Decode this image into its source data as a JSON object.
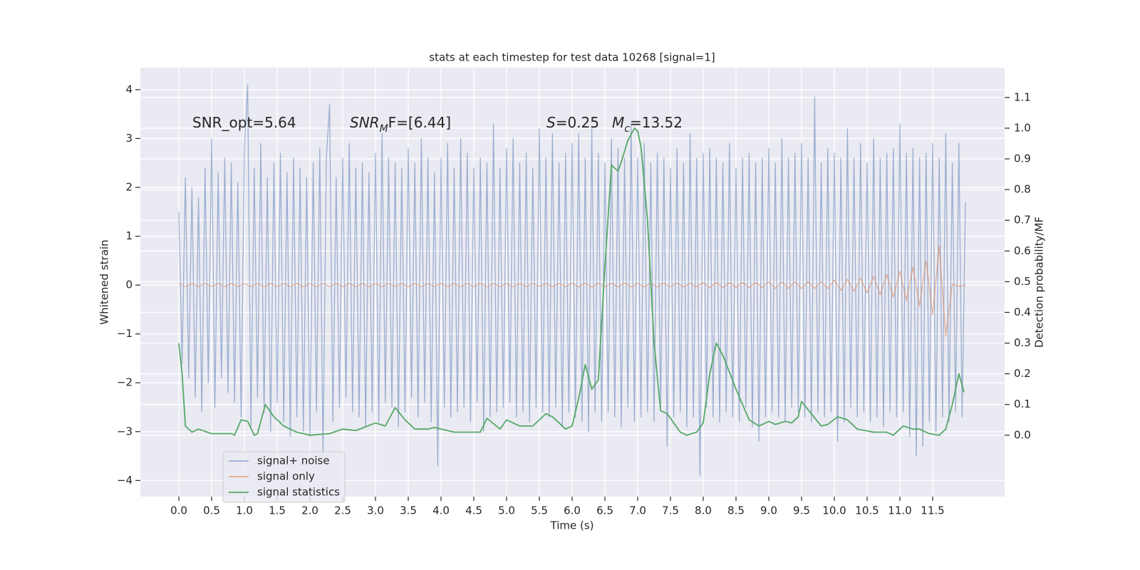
{
  "chart_data": {
    "type": "line",
    "title": "stats at each timestep for test data 10268 [signal=1]",
    "xlabel": "Time (s)",
    "ylabel": "Whitened strain",
    "y2label": "Detection probability/MF",
    "annotations": [
      {
        "parts": [
          {
            "text": "SNR_opt=5.64"
          }
        ]
      },
      {
        "parts": [
          {
            "text": "SNR",
            "style": "italic"
          },
          {
            "text": "M",
            "style": "sub"
          },
          {
            "text": "F=[6.44]"
          }
        ]
      },
      {
        "parts": [
          {
            "text": "S",
            "style": "italic"
          },
          {
            "text": "=0.25"
          }
        ]
      },
      {
        "parts": [
          {
            "text": "M",
            "style": "italic"
          },
          {
            "text": "c",
            "style": "sub"
          },
          {
            "text": "=13.52"
          }
        ]
      }
    ],
    "xlim": [
      -0.587,
      12.598
    ],
    "xticks": [
      {
        "value": 0,
        "label": "0.0"
      },
      0.5,
      {
        "value": 1,
        "label": "1.0"
      },
      1.5,
      {
        "value": 2,
        "label": "2.0"
      },
      2.5,
      {
        "value": 3,
        "label": "3.0"
      },
      3.5,
      {
        "value": 4,
        "label": "4.0"
      },
      4.5,
      {
        "value": 5,
        "label": "5.0"
      },
      5.5,
      {
        "value": 6,
        "label": "6.0"
      },
      6.5,
      {
        "value": 7,
        "label": "7.0"
      },
      7.5,
      {
        "value": 8,
        "label": "8.0"
      },
      8.5,
      {
        "value": 9,
        "label": "9.0"
      },
      9.5,
      {
        "value": 10,
        "label": "10.0"
      },
      10.5,
      {
        "value": 11,
        "label": "11.0"
      },
      11.5
    ],
    "ylim": [
      -4.33,
      4.45
    ],
    "yticks": [
      {
        "value": -4,
        "label": "−4"
      },
      {
        "value": -3,
        "label": "−3"
      },
      {
        "value": -2,
        "label": "−2"
      },
      {
        "value": -1,
        "label": "−1"
      },
      0,
      1,
      2,
      3,
      4
    ],
    "y2lim": [
      -0.2,
      1.197
    ],
    "y2ticks": [
      {
        "value": 0,
        "label": "0.0"
      },
      0.1,
      0.2,
      0.3,
      0.4,
      0.5,
      0.6,
      0.7,
      0.8,
      0.9,
      {
        "value": 1,
        "label": "1.0"
      },
      1.1
    ],
    "grid": true,
    "legend": "lower left",
    "x": [
      0,
      0.05,
      0.1,
      0.15,
      0.2,
      0.25,
      0.3,
      0.35,
      0.4,
      0.45,
      0.5,
      0.55,
      0.6,
      0.65,
      0.7,
      0.75,
      0.8,
      0.85,
      0.9,
      0.95,
      1,
      1.05,
      1.1,
      1.15,
      1.2,
      1.25,
      1.3,
      1.35,
      1.4,
      1.45,
      1.5,
      1.55,
      1.6,
      1.65,
      1.7,
      1.75,
      1.8,
      1.85,
      1.9,
      1.95,
      2,
      2.05,
      2.1,
      2.15,
      2.2,
      2.25,
      2.3,
      2.35,
      2.4,
      2.45,
      2.5,
      2.55,
      2.6,
      2.65,
      2.7,
      2.75,
      2.8,
      2.85,
      2.9,
      2.95,
      3,
      3.05,
      3.1,
      3.15,
      3.2,
      3.25,
      3.3,
      3.35,
      3.4,
      3.45,
      3.5,
      3.55,
      3.6,
      3.65,
      3.7,
      3.75,
      3.8,
      3.85,
      3.9,
      3.95,
      4,
      4.05,
      4.1,
      4.15,
      4.2,
      4.25,
      4.3,
      4.35,
      4.4,
      4.45,
      4.5,
      4.55,
      4.6,
      4.65,
      4.7,
      4.75,
      4.8,
      4.85,
      4.9,
      4.95,
      5,
      5.05,
      5.1,
      5.15,
      5.2,
      5.25,
      5.3,
      5.35,
      5.4,
      5.45,
      5.5,
      5.55,
      5.6,
      5.65,
      5.7,
      5.75,
      5.8,
      5.85,
      5.9,
      5.95,
      6,
      6.05,
      6.1,
      6.15,
      6.2,
      6.25,
      6.3,
      6.35,
      6.4,
      6.45,
      6.5,
      6.55,
      6.6,
      6.65,
      6.7,
      6.75,
      6.8,
      6.85,
      6.9,
      6.95,
      7,
      7.05,
      7.1,
      7.15,
      7.2,
      7.25,
      7.3,
      7.35,
      7.4,
      7.45,
      7.5,
      7.55,
      7.6,
      7.65,
      7.7,
      7.75,
      7.8,
      7.85,
      7.9,
      7.95,
      8,
      8.05,
      8.1,
      8.15,
      8.2,
      8.25,
      8.3,
      8.35,
      8.4,
      8.45,
      8.5,
      8.55,
      8.6,
      8.65,
      8.7,
      8.75,
      8.8,
      8.85,
      8.9,
      8.95,
      9,
      9.05,
      9.1,
      9.15,
      9.2,
      9.25,
      9.3,
      9.35,
      9.4,
      9.45,
      9.5,
      9.55,
      9.6,
      9.65,
      9.7,
      9.75,
      9.8,
      9.85,
      9.9,
      9.95,
      10,
      10.05,
      10.1,
      10.15,
      10.2,
      10.25,
      10.3,
      10.35,
      10.4,
      10.45,
      10.5,
      10.55,
      10.6,
      10.65,
      10.7,
      10.75,
      10.8,
      10.85,
      10.9,
      10.95,
      11,
      11.05,
      11.1,
      11.15,
      11.2,
      11.25,
      11.3,
      11.35,
      11.4,
      11.45,
      11.5,
      11.55,
      11.6,
      11.65,
      11.7,
      11.75,
      11.8,
      11.85,
      11.9,
      11.95,
      12
    ],
    "series": [
      {
        "name": "signal+ noise",
        "color": "#4c72b0",
        "alpha": 0.5,
        "values": [
          1.5,
          -1.6,
          2.2,
          -1.9,
          2.0,
          -2.3,
          1.8,
          -2.6,
          2.4,
          -2.0,
          3.0,
          -2.5,
          2.3,
          -1.9,
          2.6,
          -2.2,
          2.5,
          -2.4,
          2.1,
          -2.7,
          2.8,
          4.1,
          -2.9,
          2.4,
          -2.3,
          2.9,
          -2.6,
          2.2,
          -3.0,
          2.5,
          -2.4,
          2.7,
          -2.8,
          2.3,
          -3.1,
          2.6,
          -2.7,
          2.4,
          -3.0,
          2.2,
          -3.1,
          2.5,
          -2.6,
          2.8,
          -3.5,
          2.6,
          3.7,
          -2.8,
          2.2,
          -2.5,
          2.6,
          -2.3,
          2.9,
          -2.6,
          2.4,
          -2.7,
          2.5,
          -2.9,
          2.3,
          -2.6,
          2.7,
          -2.8,
          3.1,
          -2.4,
          2.6,
          -2.5,
          2.5,
          -2.9,
          2.4,
          -2.6,
          2.8,
          -2.3,
          2.5,
          -2.7,
          3.0,
          -2.4,
          2.6,
          -2.8,
          2.3,
          -3.7,
          2.6,
          -2.5,
          2.9,
          -2.7,
          2.4,
          -2.6,
          3.0,
          -2.5,
          2.7,
          -2.8,
          2.4,
          -2.4,
          2.6,
          -3.0,
          2.5,
          -2.7,
          3.3,
          -2.6,
          2.4,
          -2.5,
          2.8,
          -2.4,
          3.0,
          -2.7,
          2.5,
          -2.6,
          2.7,
          -2.8,
          2.4,
          -2.5,
          3.2,
          -2.6,
          2.6,
          -2.7,
          3.1,
          -2.5,
          2.5,
          -2.9,
          2.7,
          -2.6,
          2.9,
          -2.7,
          3.1,
          -2.8,
          2.6,
          -3.0,
          3.2,
          -2.6,
          2.7,
          -2.8,
          2.5,
          -2.6,
          3.0,
          -2.7,
          2.8,
          -2.9,
          2.6,
          -2.5,
          3.3,
          -2.8,
          2.6,
          -2.7,
          2.9,
          -2.6,
          2.5,
          -2.8,
          2.7,
          -2.5,
          2.6,
          -3.3,
          2.4,
          -2.7,
          2.8,
          -2.6,
          2.5,
          -2.9,
          3.1,
          -2.7,
          2.6,
          -3.9,
          2.7,
          -2.5,
          2.8,
          -2.7,
          2.6,
          -2.8,
          2.5,
          -2.6,
          2.9,
          -2.7,
          2.4,
          -2.8,
          2.6,
          -2.5,
          2.7,
          -2.9,
          2.5,
          -3.2,
          2.6,
          -2.7,
          2.8,
          -2.6,
          2.5,
          -2.7,
          3.0,
          -2.8,
          2.6,
          -2.5,
          2.7,
          -2.6,
          2.9,
          -2.7,
          2.6,
          -2.8,
          3.85,
          -2.6,
          2.5,
          -2.7,
          2.8,
          -2.6,
          2.7,
          -3.2,
          2.6,
          -2.8,
          3.2,
          -2.5,
          2.6,
          -2.7,
          2.9,
          -2.6,
          2.5,
          -2.8,
          3.0,
          -2.7,
          2.6,
          -2.9,
          2.7,
          -2.6,
          2.8,
          -2.7,
          3.3,
          -2.6,
          2.7,
          -3.1,
          2.8,
          -3.5,
          2.6,
          -3.3,
          2.7,
          -2.8,
          2.9,
          -3.0,
          2.6,
          -2.7,
          3.1,
          -2.8,
          2.5,
          -2.6,
          2.9,
          -2.7,
          1.7
        ]
      },
      {
        "name": "signal only",
        "color": "#dd8452",
        "alpha": 0.6,
        "x": [
          0,
          0.1,
          0.2,
          0.3,
          0.4,
          0.5,
          0.6,
          0.7,
          0.8,
          0.9,
          1,
          1.1,
          1.2,
          1.3,
          1.4,
          1.5,
          1.6,
          1.7,
          1.8,
          1.9,
          2,
          2.1,
          2.2,
          2.3,
          2.4,
          2.5,
          2.6,
          2.7,
          2.8,
          2.9,
          3,
          3.1,
          3.2,
          3.3,
          3.4,
          3.5,
          3.6,
          3.7,
          3.8,
          3.9,
          4,
          4.1,
          4.2,
          4.3,
          4.4,
          4.5,
          4.6,
          4.7,
          4.8,
          4.9,
          5,
          5.1,
          5.2,
          5.3,
          5.4,
          5.5,
          5.6,
          5.7,
          5.8,
          5.9,
          6,
          6.1,
          6.2,
          6.3,
          6.4,
          6.5,
          6.6,
          6.7,
          6.8,
          6.9,
          7,
          7.1,
          7.2,
          7.3,
          7.4,
          7.5,
          7.6,
          7.7,
          7.8,
          7.9,
          8,
          8.1,
          8.2,
          8.3,
          8.4,
          8.5,
          8.6,
          8.7,
          8.8,
          8.9,
          9,
          9.1,
          9.2,
          9.3,
          9.4,
          9.5,
          9.6,
          9.7,
          9.8,
          9.9,
          10,
          10.1,
          10.2,
          10.3,
          10.4,
          10.5,
          10.6,
          10.7,
          10.8,
          10.9,
          11,
          11.1,
          11.2,
          11.3,
          11.4,
          11.5,
          11.6,
          11.7,
          11.8,
          11.9,
          12
        ],
        "values": [
          0.03,
          -0.03,
          0.03,
          -0.03,
          0.03,
          -0.03,
          0.03,
          -0.03,
          0.03,
          -0.03,
          0.03,
          -0.03,
          0.03,
          -0.03,
          0.03,
          -0.03,
          0.03,
          -0.03,
          0.03,
          -0.03,
          0.03,
          -0.03,
          0.03,
          -0.03,
          0.03,
          -0.03,
          0.03,
          -0.03,
          0.03,
          -0.03,
          0.03,
          -0.03,
          0.03,
          -0.03,
          0.03,
          -0.03,
          0.03,
          -0.03,
          0.03,
          -0.03,
          0.03,
          -0.03,
          0.03,
          -0.03,
          0.03,
          -0.03,
          0.03,
          -0.03,
          0.03,
          -0.03,
          0.03,
          -0.03,
          0.03,
          -0.03,
          0.03,
          -0.03,
          0.03,
          -0.03,
          0.03,
          -0.03,
          0.035,
          -0.035,
          0.035,
          -0.035,
          0.035,
          -0.035,
          0.035,
          -0.035,
          0.035,
          -0.035,
          0.035,
          -0.035,
          0.035,
          -0.035,
          0.035,
          -0.035,
          0.035,
          -0.035,
          0.035,
          -0.035,
          0.05,
          -0.05,
          0.05,
          -0.05,
          0.05,
          -0.05,
          0.05,
          -0.05,
          0.05,
          -0.05,
          0.07,
          -0.07,
          0.07,
          -0.07,
          0.07,
          -0.07,
          0.07,
          -0.07,
          0.07,
          -0.07,
          0.1,
          -0.11,
          0.12,
          -0.13,
          0.14,
          -0.16,
          0.18,
          -0.2,
          0.22,
          -0.25,
          0.28,
          -0.32,
          0.37,
          -0.43,
          0.5,
          -0.6,
          0.8,
          -1.05,
          0.02,
          -0.02,
          0
        ]
      },
      {
        "name": "signal statistics",
        "color": "#55a868",
        "axis": "y2",
        "x": [
          0,
          0.05,
          0.1,
          0.2,
          0.3,
          0.5,
          0.8,
          0.85,
          0.95,
          1.05,
          1.15,
          1.2,
          1.32,
          1.45,
          1.6,
          1.8,
          2,
          2.3,
          2.5,
          2.7,
          3,
          3.15,
          3.3,
          3.45,
          3.6,
          3.8,
          3.9,
          4.2,
          4.6,
          4.7,
          4.9,
          5,
          5.2,
          5.4,
          5.6,
          5.7,
          5.9,
          6,
          6.1,
          6.2,
          6.3,
          6.4,
          6.5,
          6.6,
          6.7,
          6.75,
          6.85,
          6.95,
          7,
          7.05,
          7.15,
          7.25,
          7.35,
          7.45,
          7.55,
          7.65,
          7.75,
          7.9,
          8,
          8.1,
          8.2,
          8.3,
          8.5,
          8.7,
          8.85,
          9,
          9.1,
          9.25,
          9.35,
          9.45,
          9.5,
          9.65,
          9.8,
          9.9,
          10.05,
          10.2,
          10.35,
          10.6,
          10.8,
          10.9,
          11,
          11.05,
          11.2,
          11.3,
          11.45,
          11.6,
          11.7,
          11.8,
          11.9,
          11.98
        ],
        "values": [
          0.3,
          0.2,
          0.03,
          0.01,
          0.02,
          0.005,
          0.005,
          0,
          0.05,
          0.045,
          0,
          0.005,
          0.1,
          0.06,
          0.03,
          0.01,
          0,
          0.005,
          0.02,
          0.015,
          0.04,
          0.03,
          0.09,
          0.05,
          0.02,
          0.02,
          0.025,
          0.01,
          0.01,
          0.055,
          0.02,
          0.05,
          0.03,
          0.03,
          0.07,
          0.06,
          0.02,
          0.03,
          0.12,
          0.23,
          0.15,
          0.18,
          0.55,
          0.88,
          0.86,
          0.89,
          0.96,
          1.0,
          0.99,
          0.94,
          0.7,
          0.3,
          0.08,
          0.07,
          0.04,
          0.01,
          0,
          0.01,
          0.04,
          0.2,
          0.3,
          0.26,
          0.15,
          0.05,
          0.03,
          0.045,
          0.035,
          0.045,
          0.04,
          0.06,
          0.11,
          0.07,
          0.03,
          0.035,
          0.06,
          0.05,
          0.02,
          0.01,
          0.01,
          0,
          0.02,
          0.03,
          0.02,
          0.02,
          0.005,
          0,
          0.02,
          0.1,
          0.2,
          0.14
        ]
      }
    ]
  }
}
